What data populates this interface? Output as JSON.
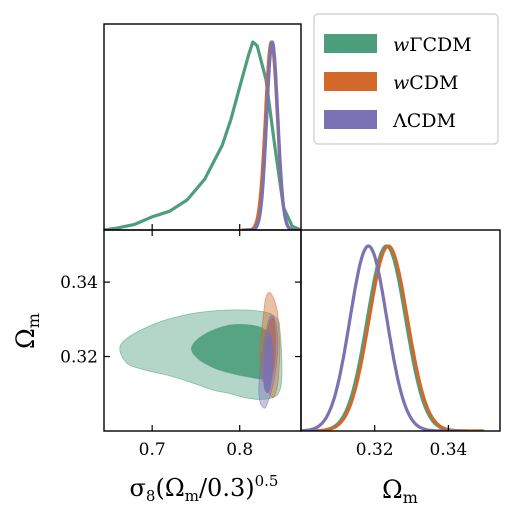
{
  "chart_data": {
    "type": "corner",
    "parameters": [
      "S8",
      "Omega_m"
    ],
    "labels": {
      "x_bottom_left": "σ8(Ωm/0.3)^0.5",
      "x_bottom_left_base": "σ",
      "x_bottom_left_sub1": "8",
      "x_bottom_left_mid": "(Ω",
      "x_bottom_left_sub2": "m",
      "x_bottom_left_end": "/0.3)",
      "x_bottom_left_sup": "0.5",
      "y_middle_left": "Ωm",
      "y_middle_left_base": "Ω",
      "y_middle_left_sub": "m",
      "x_bottom_right": "Ωm",
      "x_bottom_right_base": "Ω",
      "x_bottom_right_sub": "m"
    },
    "s8_axis": {
      "range": [
        0.645,
        0.87
      ],
      "ticks": [
        0.7,
        0.8
      ],
      "tick_labels": [
        "0.7",
        "0.8"
      ]
    },
    "om_axis": {
      "range": [
        0.3,
        0.354
      ],
      "ticks": [
        0.32,
        0.34
      ],
      "tick_labels": [
        "0.32",
        "0.34"
      ]
    },
    "legend_placement": "top-right",
    "series": [
      {
        "name": "wΓCDM",
        "name_prefix": "w",
        "name_suffix": "ΓCDM",
        "color": "#4c9e7c",
        "s8_marginal": {
          "x": [
            0.645,
            0.66,
            0.68,
            0.7,
            0.72,
            0.74,
            0.76,
            0.78,
            0.79,
            0.8,
            0.81,
            0.815,
            0.82,
            0.83,
            0.84,
            0.85,
            0.86,
            0.87
          ],
          "y": [
            0.0,
            0.01,
            0.03,
            0.07,
            0.1,
            0.16,
            0.27,
            0.45,
            0.59,
            0.76,
            0.93,
            1.0,
            0.98,
            0.8,
            0.45,
            0.12,
            0.02,
            0.0
          ]
        },
        "om_marginal": {
          "center": 0.3232,
          "sigma": 0.0052
        },
        "contours": {
          "sigma2": {
            "s8": [
              0.665,
              0.7,
              0.745,
              0.79,
              0.828,
              0.843,
              0.846,
              0.848,
              0.848,
              0.845,
              0.838,
              0.822,
              0.805,
              0.79,
              0.77,
              0.745,
              0.718,
              0.69,
              0.67,
              0.665
            ],
            "om": [
              0.3235,
              0.3285,
              0.3315,
              0.3325,
              0.332,
              0.33,
              0.327,
              0.32,
              0.314,
              0.3105,
              0.309,
              0.3085,
              0.309,
              0.31,
              0.311,
              0.313,
              0.315,
              0.3165,
              0.3185,
              0.3235
            ]
          },
          "sigma1": {
            "s8": [
              0.745,
              0.76,
              0.79,
              0.822,
              0.836,
              0.838,
              0.836,
              0.828,
              0.81,
              0.79,
              0.77,
              0.752,
              0.745
            ],
            "om": [
              0.3225,
              0.326,
              0.3285,
              0.328,
              0.325,
              0.3195,
              0.316,
              0.314,
              0.3145,
              0.3155,
              0.317,
              0.3195,
              0.3225
            ]
          }
        }
      },
      {
        "name": "wCDM",
        "name_prefix": "w",
        "name_suffix": "CDM",
        "color": "#d2692a",
        "s8_marginal": {
          "center": 0.8362,
          "sigma": 0.0068
        },
        "om_marginal": {
          "center": 0.3237,
          "sigma": 0.0052
        },
        "contours": {
          "sigma2": {
            "s8": [
              0.828,
              0.833,
              0.838,
              0.843,
              0.845,
              0.846,
              0.845,
              0.843,
              0.839,
              0.834,
              0.83,
              0.828,
              0.826,
              0.824,
              0.823,
              0.823,
              0.824,
              0.826,
              0.828
            ],
            "om": [
              0.313,
              0.3105,
              0.309,
              0.312,
              0.317,
              0.322,
              0.327,
              0.332,
              0.3355,
              0.3372,
              0.336,
              0.333,
              0.329,
              0.325,
              0.322,
              0.319,
              0.316,
              0.3135,
              0.313
            ]
          },
          "sigma1": {
            "s8": [
              0.832,
              0.836,
              0.84,
              0.841,
              0.84,
              0.837,
              0.833,
              0.829,
              0.828,
              0.829,
              0.832
            ],
            "om": [
              0.316,
              0.3145,
              0.318,
              0.324,
              0.329,
              0.3305,
              0.3285,
              0.324,
              0.321,
              0.318,
              0.316
            ]
          }
        }
      },
      {
        "name": "ΛCDM",
        "name_prefix": "",
        "name_suffix": "ΛCDM",
        "color": "#7a72b4",
        "s8_marginal": {
          "center": 0.8372,
          "sigma": 0.0063
        },
        "om_marginal": {
          "center": 0.3183,
          "sigma": 0.005
        },
        "contours": {
          "sigma2": {
            "s8": [
              0.8245,
              0.829,
              0.834,
              0.839,
              0.8425,
              0.8435,
              0.842,
              0.839,
              0.835,
              0.831,
              0.827,
              0.824,
              0.822,
              0.822,
              0.8235,
              0.8245
            ],
            "om": [
              0.307,
              0.3062,
              0.309,
              0.3135,
              0.319,
              0.324,
              0.328,
              0.3305,
              0.3308,
              0.328,
              0.323,
              0.318,
              0.3125,
              0.3095,
              0.3075,
              0.307
            ]
          },
          "sigma1": {
            "s8": [
              0.829,
              0.833,
              0.837,
              0.838,
              0.8365,
              0.833,
              0.8295,
              0.8275,
              0.8275,
              0.829
            ],
            "om": [
              0.311,
              0.3105,
              0.3145,
              0.3195,
              0.3245,
              0.3265,
              0.3235,
              0.318,
              0.313,
              0.311
            ]
          }
        }
      }
    ]
  }
}
